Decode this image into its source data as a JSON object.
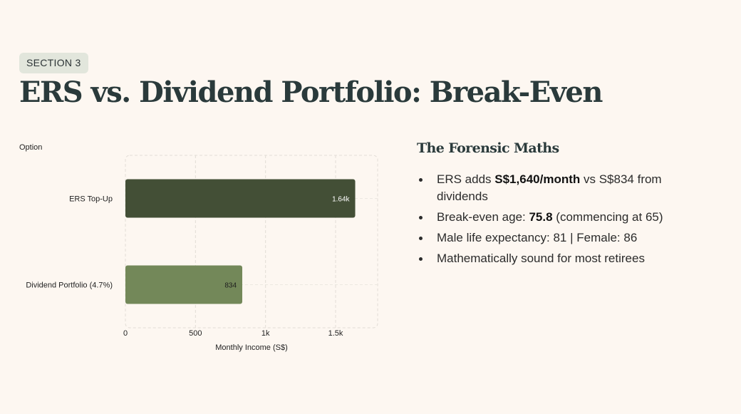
{
  "header": {
    "section_badge": "SECTION 3",
    "title": "ERS vs. Dividend Portfolio: Break-Even"
  },
  "chart_data": {
    "type": "bar",
    "orientation": "horizontal",
    "y_axis_title": "Option",
    "xlabel": "Monthly Income (S$)",
    "categories": [
      "ERS Top-Up",
      "Dividend Portfolio (4.7%)"
    ],
    "values": [
      1640,
      834
    ],
    "data_labels": [
      "1.64k",
      "834"
    ],
    "xlim": [
      0,
      1800
    ],
    "xticks": [
      0,
      500,
      1000,
      1500
    ],
    "xtick_labels": [
      "0",
      "500",
      "1k",
      "1.5k"
    ],
    "grid": true,
    "colors": [
      "#434f36",
      "#738859"
    ]
  },
  "panel": {
    "heading": "The Forensic Maths",
    "bullets": [
      {
        "pre": "ERS adds ",
        "bold": "S$1,640/month",
        "post": " vs S$834 from dividends"
      },
      {
        "pre": "Break-even age: ",
        "bold": "75.8",
        "post": " (commencing at 65)"
      },
      {
        "pre": "Male life expectancy: 81 | Female: 86",
        "bold": "",
        "post": ""
      },
      {
        "pre": "Mathematically sound for most retirees",
        "bold": "",
        "post": ""
      }
    ]
  }
}
